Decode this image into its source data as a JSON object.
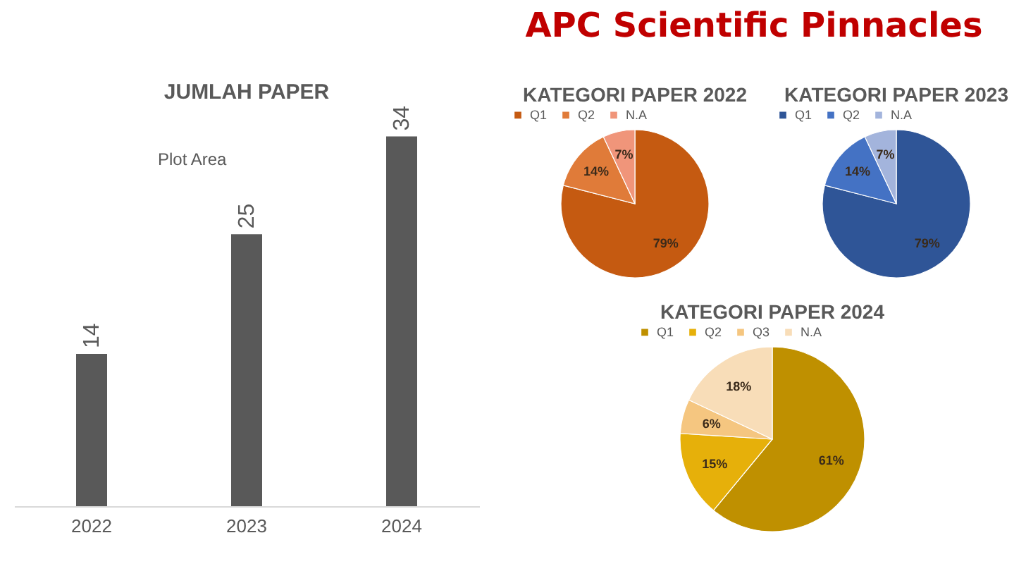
{
  "chart_data": [
    {
      "type": "other",
      "title": "APC Scientific Pinnacles"
    },
    {
      "type": "bar",
      "title": "JUMLAH PAPER",
      "categories": [
        "2022",
        "2023",
        "2024"
      ],
      "values": [
        14,
        25,
        34
      ],
      "color": "#595959",
      "data_labels": true,
      "annotations": [
        "Plot Area"
      ]
    },
    {
      "type": "pie",
      "title": "KATEGORI PAPER 2022",
      "categories": [
        "Q1",
        "Q2",
        "N.A"
      ],
      "values": [
        79,
        14,
        7
      ],
      "colors": [
        "#c55a11",
        "#e07b39",
        "#f0957a"
      ],
      "value_labels": [
        "79%",
        "14%",
        "7%"
      ],
      "legend": "top"
    },
    {
      "type": "pie",
      "title": "KATEGORI PAPER 2023",
      "categories": [
        "Q1",
        "Q2",
        "N.A"
      ],
      "values": [
        79,
        14,
        7
      ],
      "colors": [
        "#2f5597",
        "#4472c4",
        "#a3b4dc"
      ],
      "value_labels": [
        "79%",
        "14%",
        "7%"
      ],
      "legend": "top"
    },
    {
      "type": "pie",
      "title": "KATEGORI PAPER 2024",
      "categories": [
        "Q1",
        "Q2",
        "Q3",
        "N.A"
      ],
      "values": [
        61,
        15,
        6,
        18
      ],
      "colors": [
        "#bf9000",
        "#e6b00a",
        "#f5c680",
        "#f8ddb8"
      ],
      "value_labels": [
        "61%",
        "15%",
        "6%",
        "18%"
      ],
      "legend": "top"
    }
  ]
}
